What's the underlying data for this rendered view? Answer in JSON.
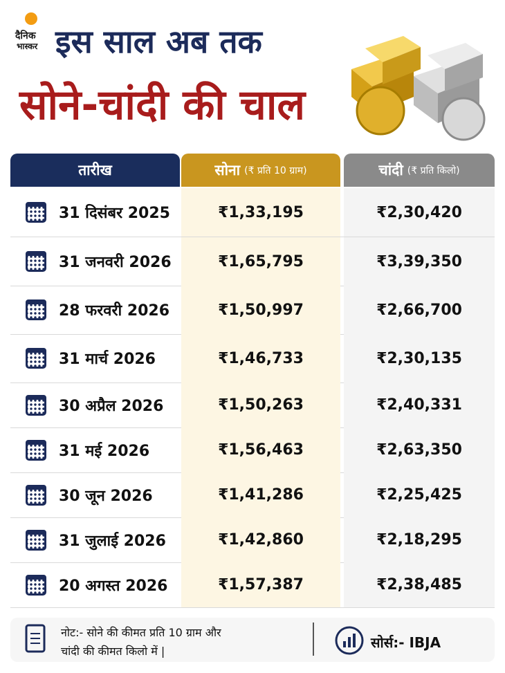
{
  "header": {
    "logo": [
      "दैनिक",
      "भास्कर"
    ],
    "title": [
      "इस साल अब तक",
      "सोने-चांदी की चाल"
    ]
  },
  "table": {
    "header": [
      "तारीख",
      {
        "main": "सोना",
        "unit": "(₹ प्रति 10 ग्राम)"
      },
      {
        "main": "चांदी",
        "unit": "(₹ प्रति किलो)"
      }
    ],
    "rows": [
      [
        "31 दिसंबर 2025",
        "₹1,33,195",
        "₹2,30,420"
      ],
      [
        "31 जनवरी 2026",
        "₹1,65,795",
        "₹3,39,350"
      ],
      [
        "28 फरवरी 2026",
        "₹1,50,997",
        "₹2,66,700"
      ],
      [
        "31 मार्च 2026",
        "₹1,46,733",
        "₹2,30,135"
      ],
      [
        "30 अप्रैल 2026",
        "₹1,50,263",
        "₹2,40,331"
      ],
      [
        "31 मई 2026",
        "₹1,56,463",
        "₹2,63,350"
      ],
      [
        "30 जून 2026",
        "₹1,41,286",
        "₹2,25,425"
      ],
      [
        "31 जुलाई 2026",
        "₹1,42,860",
        "₹2,18,295"
      ],
      [
        "20 अगस्त 2026",
        "₹1,57,387",
        "₹2,38,485"
      ]
    ]
  },
  "footer": {
    "note": [
      "नोट:- सोने की कीमत प्रति 10 ग्राम और",
      "चांदी की कीमत किलो में |"
    ],
    "source": "सोर्स:- IBJA"
  }
}
